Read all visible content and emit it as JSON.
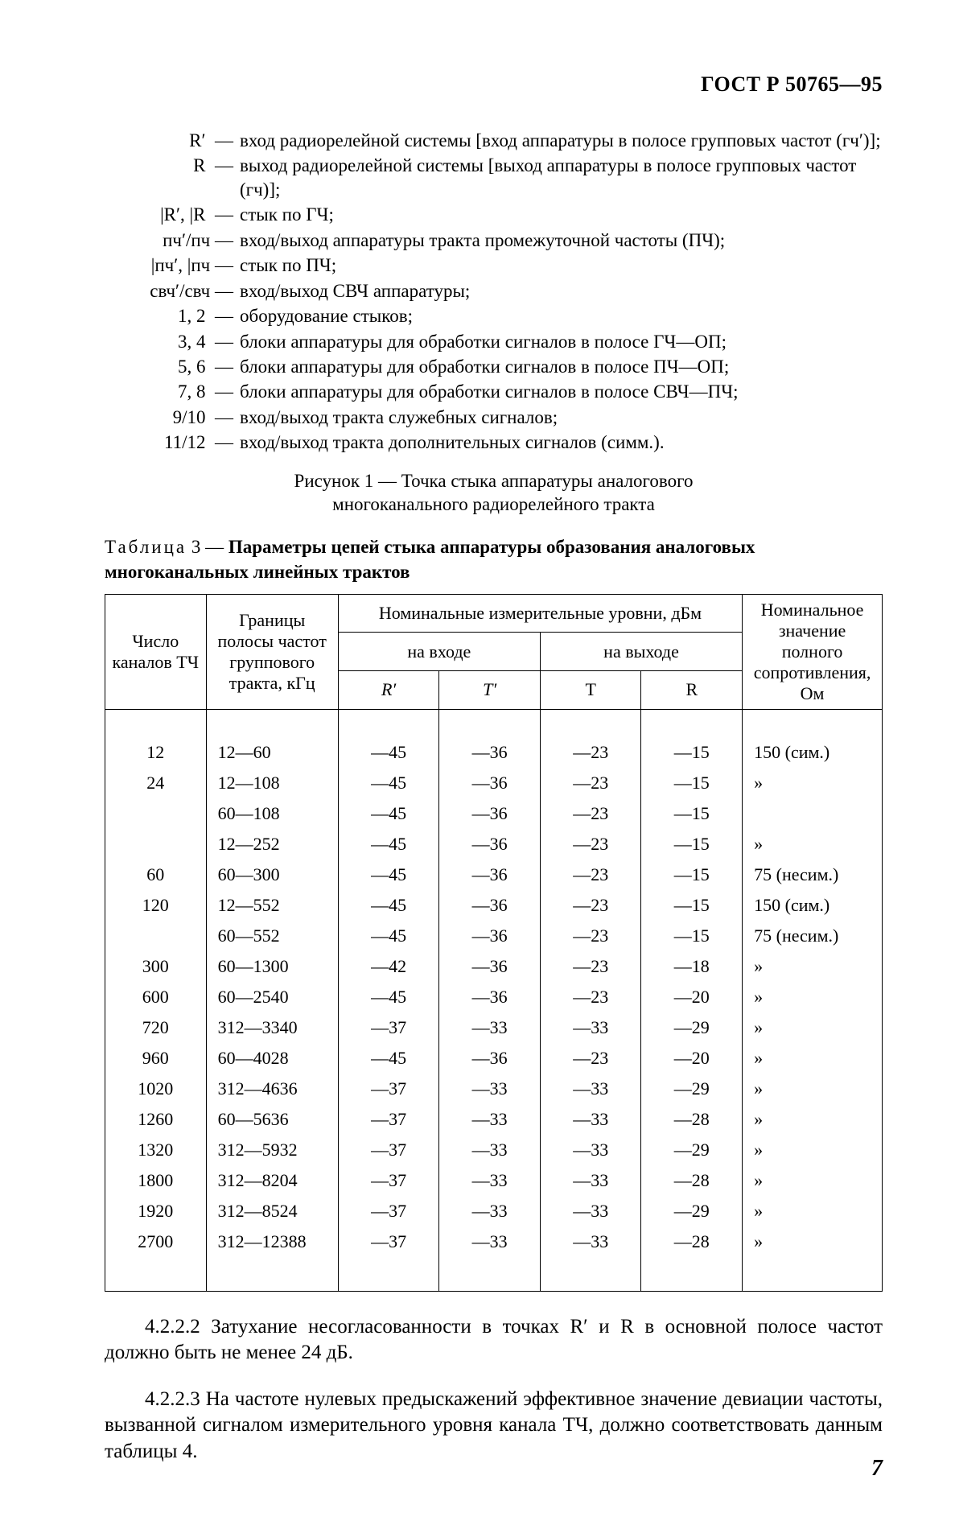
{
  "doc_id": "ГОСТ Р 50765—95",
  "definitions": [
    {
      "key": "R′  —",
      "text": "вход радиорелейной   системы [вход аппаратуры в полосе групповых частот (гч′)];"
    },
    {
      "key": "R  —",
      "text": "выход радиорелейной системы [выход аппаратуры в полосе групповых частот (гч)];"
    },
    {
      "key": "|R′, |R  —",
      "text": "стык по ГЧ;"
    },
    {
      "key": "пч′/пч —",
      "text": "вход/выход аппаратуры тракта промежуточной частоты (ПЧ);"
    },
    {
      "key": "|пч′, |пч —",
      "text": "стык по ПЧ;"
    },
    {
      "key": "свч′/свч —",
      "text": "вход/выход СВЧ аппаратуры;"
    },
    {
      "key": "1, 2  —",
      "text": "оборудование стыков;"
    },
    {
      "key": "3, 4  —",
      "text": "блоки аппаратуры для обработки сигналов в полосе ГЧ—ОП;"
    },
    {
      "key": "5, 6  —",
      "text": "блоки аппаратуры для обработки сигналов в полосе ПЧ—ОП;"
    },
    {
      "key": "7, 8  —",
      "text": "блоки аппаратуры для обработки сигналов в полосе СВЧ—ПЧ;"
    },
    {
      "key": "9/10  —",
      "text": "вход/выход тракта служебных сигналов;"
    },
    {
      "key": "11/12  —",
      "text": "вход/выход тракта дополнительных сигналов (симм.)."
    }
  ],
  "figure_caption_l1": "Рисунок 1 — Точка стыка аппаратуры аналогового",
  "figure_caption_l2": "многоканального радиорелейного тракта",
  "table_title_prefix": "Т а б л и ц а 3 — ",
  "table_title_bold": "Параметры цепей стыка аппаратуры образования аналоговых многоканальных линейных трактов",
  "table": {
    "head": {
      "col1": "Число каналов ТЧ",
      "col2": "Границы полосы частот группового тракта, кГц",
      "mid_top": "Номинальные измерительные уровни, дБм",
      "mid_in": "на входе",
      "mid_out": "на выходе",
      "sub": [
        "R′",
        "T′",
        "T",
        "R"
      ],
      "col7": "Номинальное значение полного сопротивления, Ом"
    },
    "rows": [
      {
        "c1": "12",
        "c2": "12—60",
        "r": "—45",
        "t1": "—36",
        "t": "—23",
        "rr": "—15",
        "imp": "150 (сим.)"
      },
      {
        "c1": "24",
        "c2": "12—108",
        "r": "—45",
        "t1": "—36",
        "t": "—23",
        "rr": "—15",
        "imp": "»"
      },
      {
        "c1": "",
        "c2": "60—108",
        "r": "—45",
        "t1": "—36",
        "t": "—23",
        "rr": "—15",
        "imp": ""
      },
      {
        "c1": "",
        "c2": "12—252",
        "r": "—45",
        "t1": "—36",
        "t": "—23",
        "rr": "—15",
        "imp": "»"
      },
      {
        "c1": "60",
        "c2": "60—300",
        "r": "—45",
        "t1": "—36",
        "t": "—23",
        "rr": "—15",
        "imp": "75 (несим.)"
      },
      {
        "c1": "120",
        "c2": "12—552",
        "r": "—45",
        "t1": "—36",
        "t": "—23",
        "rr": "—15",
        "imp": "150 (сим.)"
      },
      {
        "c1": "",
        "c2": "60—552",
        "r": "—45",
        "t1": "—36",
        "t": "—23",
        "rr": "—15",
        "imp": "75 (несим.)"
      },
      {
        "c1": "300",
        "c2": "60—1300",
        "r": "—42",
        "t1": "—36",
        "t": "—23",
        "rr": "—18",
        "imp": "»"
      },
      {
        "c1": "600",
        "c2": "60—2540",
        "r": "—45",
        "t1": "—36",
        "t": "—23",
        "rr": "—20",
        "imp": "»"
      },
      {
        "c1": "720",
        "c2": "312—3340",
        "r": "—37",
        "t1": "—33",
        "t": "—33",
        "rr": "—29",
        "imp": "»"
      },
      {
        "c1": "960",
        "c2": "60—4028",
        "r": "—45",
        "t1": "—36",
        "t": "—23",
        "rr": "—20",
        "imp": "»"
      },
      {
        "c1": "1020",
        "c2": "312—4636",
        "r": "—37",
        "t1": "—33",
        "t": "—33",
        "rr": "—29",
        "imp": "»"
      },
      {
        "c1": "1260",
        "c2": "60—5636",
        "r": "—37",
        "t1": "—33",
        "t": "—33",
        "rr": "—28",
        "imp": "»"
      },
      {
        "c1": "1320",
        "c2": "312—5932",
        "r": "—37",
        "t1": "—33",
        "t": "—33",
        "rr": "—29",
        "imp": "»"
      },
      {
        "c1": "1800",
        "c2": "312—8204",
        "r": "—37",
        "t1": "—33",
        "t": "—33",
        "rr": "—28",
        "imp": "»"
      },
      {
        "c1": "1920",
        "c2": "312—8524",
        "r": "—37",
        "t1": "—33",
        "t": "—33",
        "rr": "—29",
        "imp": "»"
      },
      {
        "c1": "2700",
        "c2": "312—12388",
        "r": "—37",
        "t1": "—33",
        "t": "—33",
        "rr": "—28",
        "imp": "»"
      }
    ]
  },
  "para_422": "4.2.2.2 Затухание  несогласованности в точках R′ и R в основной полосе частот должно быть не менее 24 дБ.",
  "para_423": "4.2.2.3 На частоте нулевых предыскажений эффективное значение девиации частоты, вызванной сигналом измерительного уровня канала ТЧ, должно соответствовать данным таблицы 4.",
  "page_number": "7"
}
